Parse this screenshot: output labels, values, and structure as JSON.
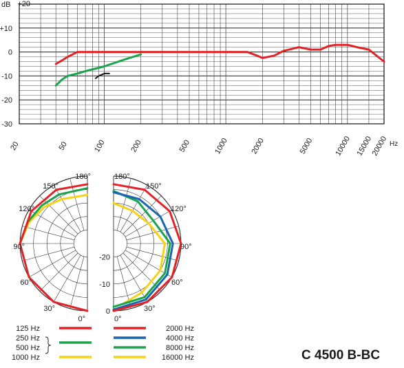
{
  "chart_data": [
    {
      "type": "line",
      "title": "",
      "xlabel": "",
      "ylabel": "dB",
      "x_unit": "Hz",
      "x_scale": "log",
      "xlim": [
        20,
        20000
      ],
      "ylim": [
        -30,
        20
      ],
      "grid": true,
      "x_tick_labels": [
        "20",
        "50",
        "100",
        "200",
        "500",
        "1000",
        "2000",
        "5000",
        "10000",
        "15000",
        "20000"
      ],
      "x_ticks": [
        20,
        50,
        100,
        200,
        500,
        1000,
        2000,
        5000,
        10000,
        15000,
        20000
      ],
      "y_tick_labels": [
        "+20",
        "+10",
        "0",
        "-10",
        "-20",
        "-30"
      ],
      "y_ticks": [
        20,
        10,
        0,
        -10,
        -20,
        -30
      ],
      "series": [
        {
          "color": "#e32227",
          "x": [
            40,
            45,
            50,
            55,
            60,
            70,
            80,
            100,
            150,
            200,
            300,
            500,
            700,
            1000,
            1500,
            1800,
            2000,
            2500,
            3000,
            4000,
            5000,
            6000,
            7000,
            8000,
            10000,
            12000,
            15000,
            20000
          ],
          "y": [
            -5,
            -3.5,
            -2,
            -1,
            0,
            0,
            0,
            0,
            0,
            0,
            0,
            0,
            0,
            0,
            0,
            -1.5,
            -2.5,
            -1.5,
            0.5,
            2,
            1,
            1,
            2.5,
            3,
            3,
            2,
            1,
            -4
          ]
        },
        {
          "color": "#1ba34a",
          "x": [
            40,
            45,
            50,
            60,
            70,
            100,
            150,
            200
          ],
          "y": [
            -14,
            -11.5,
            -10,
            -9,
            -8,
            -6,
            -3,
            -1
          ]
        },
        {
          "color": "#111111",
          "x": [
            85,
            90,
            100,
            110
          ],
          "y": [
            -11,
            -10,
            -9,
            -9
          ]
        }
      ]
    },
    {
      "type": "polar",
      "title": "",
      "angle_unit": "deg",
      "angle_labels": [
        "0°",
        "30°",
        "60°",
        "90°",
        "120°",
        "150°",
        "180°",
        "30°",
        "60°",
        "90°",
        "120°",
        "150°",
        "180°",
        "0°"
      ],
      "radial_labels": [
        "0",
        "-10",
        "-20"
      ],
      "rlim": [
        -25,
        0
      ],
      "left_half": [
        {
          "color": "#e32227",
          "angles": [
            0,
            30,
            60,
            90,
            120,
            150,
            180
          ],
          "values": [
            0,
            0,
            0,
            0,
            -1,
            -2,
            -3
          ]
        },
        {
          "color": "#1ba34a",
          "angles": [
            90,
            110,
            130,
            150,
            180
          ],
          "values": [
            0,
            -1.5,
            -3,
            -4,
            -4.5
          ]
        },
        {
          "color": "#f7d117",
          "angles": [
            90,
            110,
            130,
            150,
            180
          ],
          "values": [
            0,
            -2,
            -4,
            -6,
            -7
          ]
        }
      ],
      "right_half": [
        {
          "color": "#e32227",
          "angles": [
            0,
            30,
            60,
            90,
            120,
            150,
            180
          ],
          "values": [
            0,
            0,
            0,
            0,
            -1,
            -2,
            -3
          ]
        },
        {
          "color": "#1667b0",
          "angles": [
            0,
            30,
            60,
            90,
            120,
            150,
            180
          ],
          "values": [
            -0.5,
            -1,
            -2,
            -3,
            -5,
            -6,
            -6
          ]
        },
        {
          "color": "#1ba34a",
          "angles": [
            0,
            30,
            60,
            90,
            120,
            150,
            180
          ],
          "values": [
            -1.5,
            -2,
            -3,
            -4,
            -8,
            -7,
            -5.5
          ]
        },
        {
          "color": "#f7d117",
          "angles": [
            10,
            30,
            60,
            90,
            120,
            150,
            180
          ],
          "values": [
            -2.5,
            -4,
            -5,
            -6,
            -10,
            -11,
            -10
          ]
        }
      ],
      "legend": {
        "left": [
          {
            "label": "125 Hz",
            "color": "#e32227"
          },
          {
            "label": "250 Hz",
            "color": "#1ba34a"
          },
          {
            "label": "500 Hz",
            "color": "#1ba34a"
          },
          {
            "label": "1000 Hz",
            "color": "#f7d117"
          }
        ],
        "right": [
          {
            "label": "2000 Hz",
            "color": "#e32227"
          },
          {
            "label": "4000 Hz",
            "color": "#1667b0"
          },
          {
            "label": "8000 Hz",
            "color": "#1ba34a"
          },
          {
            "label": "16000 Hz",
            "color": "#f7d117"
          }
        ]
      }
    }
  ],
  "model_name": "C 4500 B-BC"
}
